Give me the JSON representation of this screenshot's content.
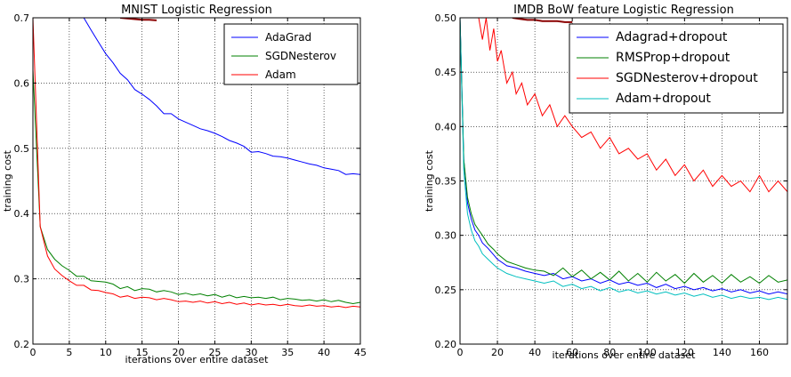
{
  "chart_data": [
    {
      "type": "line",
      "title": "MNIST Logistic Regression",
      "xlabel": "iterations over entire dataset",
      "ylabel": "training cost",
      "xlim": [
        0,
        45
      ],
      "ylim": [
        0.2,
        0.7
      ],
      "xticks": [
        0,
        5,
        10,
        15,
        20,
        25,
        30,
        35,
        40,
        45
      ],
      "yticks": [
        0.2,
        0.3,
        0.4,
        0.5,
        0.6,
        0.7
      ],
      "xtick_labels": [
        "0",
        "5",
        "10",
        "15",
        "20",
        "25",
        "30",
        "35",
        "40",
        "45"
      ],
      "ytick_labels": [
        "0.2",
        "0.3",
        "0.4",
        "0.5",
        "0.6",
        "0.7"
      ],
      "grid": true,
      "legend_position": "top-right",
      "series": [
        {
          "name": "AdaGrad",
          "color": "#0000ff",
          "x": [
            7,
            8,
            9,
            10,
            11,
            12,
            13,
            14,
            15,
            16,
            17,
            18,
            19,
            20,
            21,
            22,
            23,
            24,
            25,
            26,
            27,
            28,
            29,
            30,
            31,
            32,
            33,
            34,
            35,
            36,
            37,
            38,
            39,
            40,
            41,
            42,
            43,
            44,
            45
          ],
          "y": [
            0.7,
            0.681,
            0.663,
            0.645,
            0.631,
            0.615,
            0.605,
            0.59,
            0.583,
            0.575,
            0.565,
            0.553,
            0.553,
            0.545,
            0.54,
            0.535,
            0.53,
            0.527,
            0.523,
            0.518,
            0.512,
            0.508,
            0.503,
            0.494,
            0.495,
            0.492,
            0.488,
            0.487,
            0.485,
            0.482,
            0.479,
            0.476,
            0.474,
            0.47,
            0.468,
            0.466,
            0.46,
            0.461,
            0.46
          ]
        },
        {
          "name": "SGDNesterov",
          "color": "#008000",
          "x": [
            0,
            1,
            2,
            3,
            4,
            5,
            6,
            7,
            8,
            9,
            10,
            11,
            12,
            13,
            14,
            15,
            16,
            17,
            18,
            19,
            20,
            21,
            22,
            23,
            24,
            25,
            26,
            27,
            28,
            29,
            30,
            31,
            32,
            33,
            34,
            35,
            36,
            37,
            38,
            39,
            40,
            41,
            42,
            43,
            44,
            45
          ],
          "y": [
            0.62,
            0.38,
            0.345,
            0.33,
            0.32,
            0.313,
            0.304,
            0.304,
            0.297,
            0.296,
            0.295,
            0.292,
            0.285,
            0.288,
            0.282,
            0.285,
            0.284,
            0.28,
            0.282,
            0.28,
            0.276,
            0.278,
            0.275,
            0.277,
            0.274,
            0.276,
            0.272,
            0.275,
            0.271,
            0.273,
            0.271,
            0.272,
            0.27,
            0.272,
            0.268,
            0.27,
            0.269,
            0.267,
            0.268,
            0.266,
            0.268,
            0.265,
            0.267,
            0.264,
            0.262,
            0.264
          ]
        },
        {
          "name": "Adam",
          "color": "#ff0000",
          "x": [
            0,
            1,
            2,
            3,
            4,
            5,
            6,
            7,
            8,
            9,
            10,
            11,
            12,
            13,
            14,
            15,
            16,
            17,
            18,
            19,
            20,
            21,
            22,
            23,
            24,
            25,
            26,
            27,
            28,
            29,
            30,
            31,
            32,
            33,
            34,
            35,
            36,
            37,
            38,
            39,
            40,
            41,
            42,
            43,
            44,
            45
          ],
          "y": [
            0.7,
            0.38,
            0.335,
            0.315,
            0.305,
            0.297,
            0.29,
            0.29,
            0.283,
            0.282,
            0.279,
            0.277,
            0.272,
            0.274,
            0.27,
            0.272,
            0.271,
            0.268,
            0.27,
            0.268,
            0.265,
            0.266,
            0.264,
            0.266,
            0.263,
            0.265,
            0.262,
            0.264,
            0.261,
            0.263,
            0.26,
            0.262,
            0.26,
            0.261,
            0.259,
            0.261,
            0.259,
            0.258,
            0.26,
            0.258,
            0.259,
            0.257,
            0.258,
            0.256,
            0.258,
            0.257
          ]
        },
        {
          "name": "",
          "color": "#8b0000",
          "x": [
            12,
            13,
            14,
            15,
            16,
            17
          ],
          "y": [
            0.7,
            0.699,
            0.698,
            0.697,
            0.697,
            0.696
          ]
        }
      ]
    },
    {
      "type": "line",
      "title": "IMDB BoW feature Logistic Regression",
      "xlabel": "iterations over entire dataset",
      "ylabel": "training cost",
      "xlim": [
        0,
        175
      ],
      "ylim": [
        0.2,
        0.5
      ],
      "xticks": [
        0,
        20,
        40,
        60,
        80,
        100,
        120,
        140,
        160
      ],
      "yticks": [
        0.2,
        0.25,
        0.3,
        0.35,
        0.4,
        0.45,
        0.5
      ],
      "xtick_labels": [
        "0",
        "20",
        "40",
        "60",
        "80",
        "100",
        "120",
        "140",
        "160"
      ],
      "ytick_labels": [
        "0.20",
        "0.25",
        "0.30",
        "0.35",
        "0.40",
        "0.45",
        "0.50"
      ],
      "grid": true,
      "legend_position": "top-right",
      "series": [
        {
          "name": "Adagrad+dropout",
          "color": "#0000ff",
          "x": [
            0,
            2,
            4,
            6,
            8,
            10,
            12,
            15,
            18,
            20,
            25,
            30,
            35,
            40,
            45,
            50,
            55,
            60,
            65,
            70,
            75,
            80,
            85,
            90,
            95,
            100,
            105,
            110,
            115,
            120,
            125,
            130,
            135,
            140,
            145,
            150,
            155,
            160,
            165,
            170,
            175
          ],
          "y": [
            0.5,
            0.37,
            0.33,
            0.315,
            0.305,
            0.3,
            0.293,
            0.288,
            0.282,
            0.278,
            0.272,
            0.27,
            0.267,
            0.265,
            0.263,
            0.265,
            0.26,
            0.262,
            0.258,
            0.26,
            0.256,
            0.259,
            0.255,
            0.257,
            0.254,
            0.256,
            0.252,
            0.255,
            0.251,
            0.253,
            0.25,
            0.252,
            0.249,
            0.251,
            0.248,
            0.25,
            0.247,
            0.249,
            0.246,
            0.248,
            0.246
          ]
        },
        {
          "name": "RMSProp+dropout",
          "color": "#008000",
          "x": [
            0,
            2,
            4,
            6,
            8,
            10,
            12,
            15,
            18,
            20,
            25,
            30,
            35,
            40,
            45,
            50,
            55,
            60,
            65,
            70,
            75,
            80,
            85,
            90,
            95,
            100,
            105,
            110,
            115,
            120,
            125,
            130,
            135,
            140,
            145,
            150,
            155,
            160,
            165,
            170,
            175
          ],
          "y": [
            0.5,
            0.37,
            0.335,
            0.32,
            0.31,
            0.305,
            0.3,
            0.292,
            0.287,
            0.283,
            0.276,
            0.273,
            0.27,
            0.268,
            0.267,
            0.263,
            0.27,
            0.262,
            0.268,
            0.26,
            0.266,
            0.259,
            0.267,
            0.258,
            0.265,
            0.257,
            0.266,
            0.258,
            0.264,
            0.256,
            0.265,
            0.257,
            0.263,
            0.256,
            0.264,
            0.257,
            0.262,
            0.256,
            0.263,
            0.257,
            0.259
          ]
        },
        {
          "name": "SGDNesterov+dropout",
          "color": "#ff0000",
          "x": [
            10,
            12,
            14,
            16,
            18,
            20,
            22,
            25,
            28,
            30,
            33,
            36,
            40,
            44,
            48,
            52,
            56,
            60,
            65,
            70,
            75,
            80,
            85,
            90,
            95,
            100,
            105,
            110,
            115,
            120,
            125,
            130,
            135,
            140,
            145,
            150,
            155,
            160,
            165,
            170,
            175
          ],
          "y": [
            0.5,
            0.48,
            0.5,
            0.47,
            0.49,
            0.46,
            0.47,
            0.44,
            0.45,
            0.43,
            0.44,
            0.42,
            0.43,
            0.41,
            0.42,
            0.4,
            0.41,
            0.4,
            0.39,
            0.395,
            0.38,
            0.39,
            0.375,
            0.38,
            0.37,
            0.375,
            0.36,
            0.37,
            0.355,
            0.365,
            0.35,
            0.36,
            0.345,
            0.355,
            0.345,
            0.35,
            0.34,
            0.355,
            0.34,
            0.35,
            0.34
          ]
        },
        {
          "name": "Adam+dropout",
          "color": "#00bfbf",
          "x": [
            0,
            2,
            4,
            6,
            8,
            10,
            12,
            15,
            18,
            20,
            25,
            30,
            35,
            40,
            45,
            50,
            55,
            60,
            65,
            70,
            75,
            80,
            85,
            90,
            95,
            100,
            105,
            110,
            115,
            120,
            125,
            130,
            135,
            140,
            145,
            150,
            155,
            160,
            165,
            170,
            175
          ],
          "y": [
            0.5,
            0.36,
            0.32,
            0.305,
            0.295,
            0.29,
            0.283,
            0.278,
            0.273,
            0.27,
            0.265,
            0.262,
            0.26,
            0.258,
            0.256,
            0.258,
            0.253,
            0.255,
            0.251,
            0.253,
            0.249,
            0.252,
            0.248,
            0.25,
            0.247,
            0.249,
            0.246,
            0.248,
            0.245,
            0.247,
            0.244,
            0.246,
            0.243,
            0.245,
            0.242,
            0.244,
            0.242,
            0.243,
            0.241,
            0.243,
            0.241
          ]
        },
        {
          "name": "",
          "color": "#8b0000",
          "x": [
            28,
            32,
            36,
            40,
            44,
            48,
            52,
            56,
            60
          ],
          "y": [
            0.5,
            0.499,
            0.498,
            0.498,
            0.497,
            0.497,
            0.497,
            0.496,
            0.496
          ]
        }
      ]
    }
  ]
}
